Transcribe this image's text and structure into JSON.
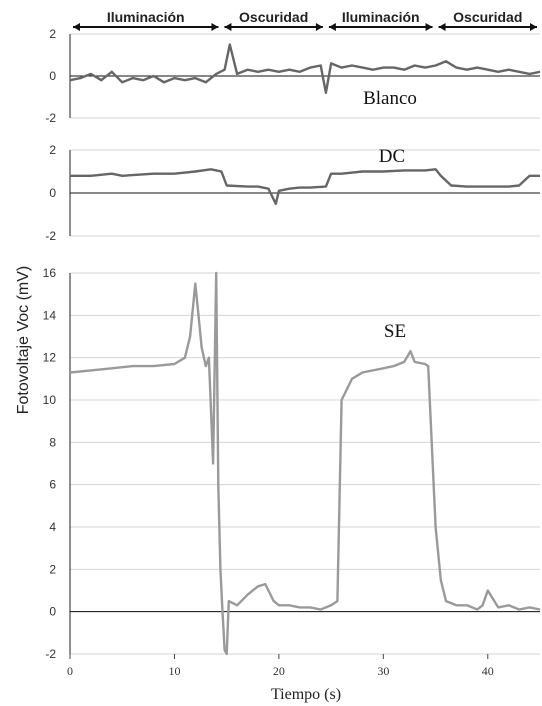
{
  "chart_data": {
    "type": "line",
    "xlabel": "Tiempo (s)",
    "ylabel": "Fotovoltaje Voc (mV)",
    "xlim": [
      0,
      45
    ],
    "x_ticks": [
      0,
      10,
      20,
      30,
      40
    ],
    "grid": true,
    "phases": [
      {
        "label": "Iluminación",
        "start": 0,
        "end": 14.5
      },
      {
        "label": "Oscuridad",
        "start": 14.5,
        "end": 24.5
      },
      {
        "label": "Iluminación",
        "start": 24.5,
        "end": 35
      },
      {
        "label": "Oscuridad",
        "start": 35,
        "end": 45
      }
    ],
    "panels": [
      {
        "name": "Blanco",
        "ylim": [
          -2,
          2
        ],
        "y_ticks": [
          -2,
          0,
          2
        ],
        "color": "#666666",
        "x": [
          0,
          1,
          2,
          3,
          4,
          5,
          6,
          7,
          8,
          9,
          10,
          11,
          12,
          13,
          14,
          14.8,
          15.3,
          16,
          17,
          18,
          19,
          20,
          21,
          22,
          23,
          24,
          24.5,
          25,
          26,
          27,
          28,
          29,
          30,
          31,
          32,
          33,
          34,
          35,
          36,
          37,
          38,
          39,
          40,
          41,
          42,
          43,
          44,
          45
        ],
        "y": [
          -0.2,
          -0.1,
          0.1,
          -0.2,
          0.2,
          -0.3,
          -0.1,
          -0.2,
          0.0,
          -0.3,
          -0.1,
          -0.2,
          -0.1,
          -0.3,
          0.1,
          0.3,
          1.5,
          0.1,
          0.3,
          0.2,
          0.3,
          0.2,
          0.3,
          0.2,
          0.4,
          0.5,
          -0.8,
          0.6,
          0.4,
          0.5,
          0.4,
          0.3,
          0.4,
          0.4,
          0.3,
          0.5,
          0.4,
          0.5,
          0.7,
          0.4,
          0.3,
          0.4,
          0.3,
          0.2,
          0.3,
          0.2,
          0.1,
          0.2
        ]
      },
      {
        "name": "DC",
        "ylim": [
          -2,
          2
        ],
        "y_ticks": [
          -2,
          0,
          2
        ],
        "color": "#666666",
        "x": [
          0,
          2,
          4,
          5,
          8,
          10,
          12,
          13.5,
          14.5,
          15,
          17,
          18,
          19,
          19.7,
          20,
          21,
          22,
          23,
          24.5,
          25,
          26,
          28,
          30,
          32,
          34,
          35,
          35.5,
          36.5,
          38,
          40,
          42,
          43,
          44,
          45
        ],
        "y": [
          0.8,
          0.8,
          0.9,
          0.8,
          0.9,
          0.9,
          1.0,
          1.1,
          1.0,
          0.35,
          0.3,
          0.3,
          0.2,
          -0.5,
          0.1,
          0.2,
          0.25,
          0.25,
          0.3,
          0.9,
          0.9,
          1.0,
          1.0,
          1.05,
          1.05,
          1.1,
          0.8,
          0.35,
          0.3,
          0.3,
          0.3,
          0.35,
          0.8,
          0.8
        ]
      },
      {
        "name": "SE",
        "ylim": [
          -2,
          16
        ],
        "y_ticks": [
          -2,
          0,
          2,
          4,
          6,
          8,
          10,
          12,
          14,
          16
        ],
        "color": "#9a9a9a",
        "x": [
          0,
          2,
          4,
          6,
          8,
          10,
          11,
          11.5,
          12,
          12.3,
          12.6,
          13,
          13.3,
          13.7,
          14,
          14.2,
          14.4,
          14.6,
          14.8,
          15,
          15.2,
          16,
          17,
          18,
          18.7,
          19.5,
          20,
          21,
          22,
          23,
          24,
          25,
          25.6,
          26,
          27,
          28,
          30,
          31,
          32,
          32.6,
          33,
          34,
          34.3,
          35,
          35.5,
          36,
          37,
          38,
          39,
          39.5,
          40,
          41,
          42,
          43,
          44,
          45
        ],
        "y": [
          11.3,
          11.4,
          11.5,
          11.6,
          11.6,
          11.7,
          12.0,
          13.0,
          15.5,
          14.0,
          12.5,
          11.6,
          12.0,
          7.0,
          16.0,
          6.0,
          2.0,
          0.0,
          -1.8,
          -2.0,
          0.5,
          0.3,
          0.8,
          1.2,
          1.3,
          0.5,
          0.3,
          0.3,
          0.2,
          0.2,
          0.1,
          0.3,
          0.5,
          10.0,
          11.0,
          11.3,
          11.5,
          11.6,
          11.8,
          12.3,
          11.8,
          11.7,
          11.6,
          4.0,
          1.5,
          0.5,
          0.3,
          0.3,
          0.1,
          0.3,
          1.0,
          0.2,
          0.3,
          0.1,
          0.2,
          0.1
        ]
      }
    ]
  }
}
